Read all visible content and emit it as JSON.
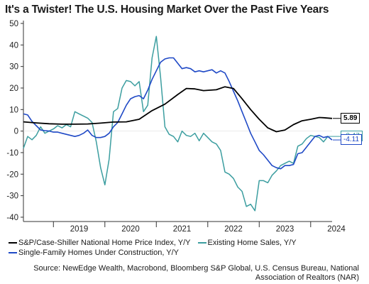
{
  "header": {
    "title": "It's a Twister!  The U.S. Housing Market Over the Past Five Years"
  },
  "footer": {
    "source": "Source: NewEdge Wealth, Macrobond, Bloomberg S&P Global, U.S. Census Bureau, National Association of Realtors (NAR)"
  },
  "chart_data": {
    "type": "line",
    "title": "It's a Twister!  The U.S. Housing Market Over the Past Five Years",
    "xlabel": "",
    "ylabel": "",
    "ylim": [
      -42,
      50
    ],
    "yticks": [
      50,
      40,
      30,
      20,
      10,
      0,
      -10,
      -20,
      -30,
      -40
    ],
    "ytick_labels": [
      "50",
      "40",
      "30",
      "20",
      "10",
      "0",
      "-10",
      "-20",
      "-30",
      "-40"
    ],
    "xlim": [
      "2018-06",
      "2024-06"
    ],
    "xtick_labels": [
      "2019",
      "2020",
      "2021",
      "2022",
      "2023",
      "2024"
    ],
    "grid": false,
    "legend_position": "bottom",
    "series": [
      {
        "name": "S&P/Case-Shiller National Home Price Index, Y/Y",
        "color": "#000000",
        "end_label": "5.89",
        "points": [
          [
            "2018-06",
            4.3
          ],
          [
            "2018-09",
            3.8
          ],
          [
            "2018-12",
            3.4
          ],
          [
            "2019-03",
            3.2
          ],
          [
            "2019-06",
            3.2
          ],
          [
            "2019-09",
            3.3
          ],
          [
            "2019-12",
            3.7
          ],
          [
            "2020-03",
            4.2
          ],
          [
            "2020-06",
            4.3
          ],
          [
            "2020-09",
            5.5
          ],
          [
            "2020-12",
            9.5
          ],
          [
            "2021-03",
            12.5
          ],
          [
            "2021-06",
            17.0
          ],
          [
            "2021-08",
            19.8
          ],
          [
            "2021-10",
            19.6
          ],
          [
            "2021-12",
            18.8
          ],
          [
            "2022-03",
            19.2
          ],
          [
            "2022-05",
            20.6
          ],
          [
            "2022-07",
            19.8
          ],
          [
            "2022-09",
            15.0
          ],
          [
            "2022-11",
            10.0
          ],
          [
            "2023-01",
            5.5
          ],
          [
            "2023-03",
            1.5
          ],
          [
            "2023-05",
            -0.3
          ],
          [
            "2023-07",
            0.5
          ],
          [
            "2023-09",
            3.0
          ],
          [
            "2023-11",
            4.8
          ],
          [
            "2024-01",
            5.5
          ],
          [
            "2024-03",
            6.3
          ],
          [
            "2024-04",
            6.2
          ],
          [
            "2024-06",
            5.89
          ]
        ]
      },
      {
        "name": "Existing Home Sales, Y/Y",
        "color": "#3c9ea0",
        "end_label": "-2.47",
        "points": [
          [
            "2018-06",
            -8.0
          ],
          [
            "2018-07",
            -2.5
          ],
          [
            "2018-08",
            -4.0
          ],
          [
            "2018-09",
            -2.0
          ],
          [
            "2018-10",
            2.0
          ],
          [
            "2018-11",
            -1.0
          ],
          [
            "2018-12",
            0.0
          ],
          [
            "2019-01",
            1.0
          ],
          [
            "2019-02",
            2.5
          ],
          [
            "2019-03",
            1.5
          ],
          [
            "2019-04",
            3.0
          ],
          [
            "2019-05",
            2.0
          ],
          [
            "2019-06",
            9.0
          ],
          [
            "2019-07",
            8.0
          ],
          [
            "2019-08",
            7.0
          ],
          [
            "2019-09",
            6.0
          ],
          [
            "2019-10",
            4.0
          ],
          [
            "2019-11",
            -5.0
          ],
          [
            "2019-12",
            -17.0
          ],
          [
            "2020-01",
            -25.0
          ],
          [
            "2020-02",
            -13.0
          ],
          [
            "2020-03",
            9.0
          ],
          [
            "2020-04",
            10.5
          ],
          [
            "2020-05",
            20.0
          ],
          [
            "2020-06",
            23.5
          ],
          [
            "2020-07",
            23.0
          ],
          [
            "2020-08",
            21.0
          ],
          [
            "2020-09",
            23.0
          ],
          [
            "2020-10",
            9.0
          ],
          [
            "2020-11",
            12.0
          ],
          [
            "2020-12",
            34.0
          ],
          [
            "2021-01",
            44.0
          ],
          [
            "2021-02",
            25.0
          ],
          [
            "2021-03",
            2.0
          ],
          [
            "2021-04",
            -1.5
          ],
          [
            "2021-05",
            -2.5
          ],
          [
            "2021-06",
            -5.0
          ],
          [
            "2021-07",
            0.0
          ],
          [
            "2021-08",
            -2.0
          ],
          [
            "2021-09",
            -2.5
          ],
          [
            "2021-10",
            -1.0
          ],
          [
            "2021-11",
            -4.5
          ],
          [
            "2021-12",
            -1.0
          ],
          [
            "2022-01",
            -3.0
          ],
          [
            "2022-02",
            -5.0
          ],
          [
            "2022-03",
            -6.0
          ],
          [
            "2022-04",
            -9.0
          ],
          [
            "2022-05",
            -19.0
          ],
          [
            "2022-06",
            -20.0
          ],
          [
            "2022-07",
            -22.0
          ],
          [
            "2022-08",
            -26.0
          ],
          [
            "2022-09",
            -28.0
          ],
          [
            "2022-10",
            -35.0
          ],
          [
            "2022-11",
            -34.0
          ],
          [
            "2022-12",
            -37.0
          ],
          [
            "2023-01",
            -23.0
          ],
          [
            "2023-02",
            -23.0
          ],
          [
            "2023-03",
            -24.0
          ],
          [
            "2023-04",
            -20.5
          ],
          [
            "2023-05",
            -18.5
          ],
          [
            "2023-06",
            -16.0
          ],
          [
            "2023-07",
            -15.0
          ],
          [
            "2023-08",
            -14.0
          ],
          [
            "2023-09",
            -15.0
          ],
          [
            "2023-10",
            -7.0
          ],
          [
            "2023-11",
            -6.0
          ],
          [
            "2023-12",
            -3.5
          ],
          [
            "2024-01",
            -2.0
          ],
          [
            "2024-02",
            -2.5
          ],
          [
            "2024-03",
            -3.0
          ],
          [
            "2024-04",
            -5.0
          ],
          [
            "2024-05",
            -2.47
          ]
        ]
      },
      {
        "name": "Single-Family Homes Under Construction, Y/Y",
        "color": "#1f49c6",
        "end_label": "-4.11",
        "points": [
          [
            "2018-06",
            8.0
          ],
          [
            "2018-07",
            7.5
          ],
          [
            "2018-08",
            4.5
          ],
          [
            "2018-09",
            2.5
          ],
          [
            "2018-10",
            0.5
          ],
          [
            "2018-11",
            0.2
          ],
          [
            "2018-12",
            0.0
          ],
          [
            "2019-01",
            -0.5
          ],
          [
            "2019-02",
            -0.5
          ],
          [
            "2019-03",
            -1.0
          ],
          [
            "2019-04",
            -1.5
          ],
          [
            "2019-05",
            -2.0
          ],
          [
            "2019-06",
            -2.5
          ],
          [
            "2019-07",
            -2.0
          ],
          [
            "2019-08",
            -1.0
          ],
          [
            "2019-09",
            0.5
          ],
          [
            "2019-10",
            -2.0
          ],
          [
            "2019-11",
            -3.0
          ],
          [
            "2019-12",
            -3.0
          ],
          [
            "2020-01",
            -2.5
          ],
          [
            "2020-02",
            -1.0
          ],
          [
            "2020-03",
            2.0
          ],
          [
            "2020-04",
            4.0
          ],
          [
            "2020-05",
            8.0
          ],
          [
            "2020-06",
            12.0
          ],
          [
            "2020-07",
            15.0
          ],
          [
            "2020-08",
            16.0
          ],
          [
            "2020-09",
            16.5
          ],
          [
            "2020-10",
            15.0
          ],
          [
            "2020-11",
            19.0
          ],
          [
            "2020-12",
            24.0
          ],
          [
            "2021-01",
            28.0
          ],
          [
            "2021-02",
            32.0
          ],
          [
            "2021-03",
            33.5
          ],
          [
            "2021-04",
            34.0
          ],
          [
            "2021-05",
            34.0
          ],
          [
            "2021-06",
            31.5
          ],
          [
            "2021-07",
            29.0
          ],
          [
            "2021-08",
            29.5
          ],
          [
            "2021-09",
            29.0
          ],
          [
            "2021-10",
            27.5
          ],
          [
            "2021-11",
            28.0
          ],
          [
            "2021-12",
            27.5
          ],
          [
            "2022-01",
            28.0
          ],
          [
            "2022-02",
            28.5
          ],
          [
            "2022-03",
            27.0
          ],
          [
            "2022-04",
            28.0
          ],
          [
            "2022-05",
            27.0
          ],
          [
            "2022-06",
            23.0
          ],
          [
            "2022-07",
            18.5
          ],
          [
            "2022-08",
            14.0
          ],
          [
            "2022-09",
            9.0
          ],
          [
            "2022-10",
            4.0
          ],
          [
            "2022-11",
            -1.0
          ],
          [
            "2022-12",
            -5.0
          ],
          [
            "2023-01",
            -9.0
          ],
          [
            "2023-02",
            -11.0
          ],
          [
            "2023-03",
            -13.5
          ],
          [
            "2023-04",
            -16.0
          ],
          [
            "2023-05",
            -17.0
          ],
          [
            "2023-06",
            -17.5
          ],
          [
            "2023-07",
            -16.0
          ],
          [
            "2023-08",
            -16.0
          ],
          [
            "2023-09",
            -15.5
          ],
          [
            "2023-10",
            -10.5
          ],
          [
            "2023-11",
            -10.0
          ],
          [
            "2023-12",
            -7.5
          ],
          [
            "2024-01",
            -5.0
          ],
          [
            "2024-02",
            -2.5
          ],
          [
            "2024-03",
            -2.0
          ],
          [
            "2024-04",
            -3.0
          ],
          [
            "2024-05",
            -2.5
          ],
          [
            "2024-06",
            -4.11
          ]
        ]
      }
    ]
  }
}
